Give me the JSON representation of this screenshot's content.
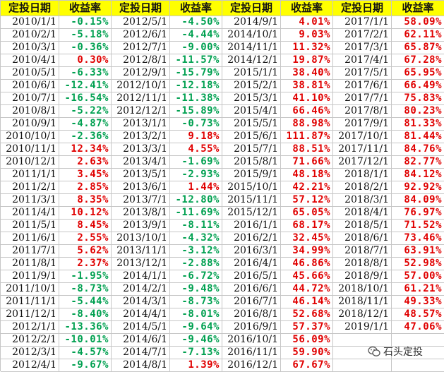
{
  "headers": [
    "定投日期",
    "收益率",
    "定投日期",
    "收益率",
    "定投日期",
    "收益率",
    "定投日期",
    "收益率"
  ],
  "colors": {
    "header_bg": "#ffff00",
    "positive": "#e00000",
    "negative": "#00a050",
    "gridline": "#c6c6c6"
  },
  "column_groups": [
    {
      "rows": [
        {
          "date": "2010/1/1",
          "return": "-0.15%"
        },
        {
          "date": "2010/2/1",
          "return": "-5.18%"
        },
        {
          "date": "2010/3/1",
          "return": "-0.36%"
        },
        {
          "date": "2010/4/1",
          "return": "0.30%"
        },
        {
          "date": "2010/5/1",
          "return": "-6.33%"
        },
        {
          "date": "2010/6/1",
          "return": "-12.41%"
        },
        {
          "date": "2010/7/1",
          "return": "-16.54%"
        },
        {
          "date": "2010/8/1",
          "return": "-5.22%"
        },
        {
          "date": "2010/9/1",
          "return": "-4.87%"
        },
        {
          "date": "2010/10/1",
          "return": "-2.36%"
        },
        {
          "date": "2010/11/1",
          "return": "12.34%"
        },
        {
          "date": "2010/12/1",
          "return": "2.63%"
        },
        {
          "date": "2011/1/1",
          "return": "3.45%"
        },
        {
          "date": "2011/2/1",
          "return": "2.85%"
        },
        {
          "date": "2011/3/1",
          "return": "8.35%"
        },
        {
          "date": "2011/4/1",
          "return": "10.12%"
        },
        {
          "date": "2011/5/1",
          "return": "8.45%"
        },
        {
          "date": "2011/6/1",
          "return": "2.55%"
        },
        {
          "date": "2011/7/1",
          "return": "5.62%"
        },
        {
          "date": "2011/8/1",
          "return": "2.37%"
        },
        {
          "date": "2011/9/1",
          "return": "-1.95%"
        },
        {
          "date": "2011/10/1",
          "return": "-8.73%"
        },
        {
          "date": "2011/11/1",
          "return": "-5.44%"
        },
        {
          "date": "2011/12/1",
          "return": "-8.40%"
        },
        {
          "date": "2012/1/1",
          "return": "-13.36%"
        },
        {
          "date": "2012/2/1",
          "return": "-10.01%"
        },
        {
          "date": "2012/3/1",
          "return": "-4.57%"
        },
        {
          "date": "2012/4/1",
          "return": "-9.67%"
        }
      ]
    },
    {
      "rows": [
        {
          "date": "2012/5/1",
          "return": "-4.50%"
        },
        {
          "date": "2012/6/1",
          "return": "-4.44%"
        },
        {
          "date": "2012/7/1",
          "return": "-9.00%"
        },
        {
          "date": "2012/8/1",
          "return": "-11.57%"
        },
        {
          "date": "2012/9/1",
          "return": "-15.79%"
        },
        {
          "date": "2012/10/1",
          "return": "-12.18%"
        },
        {
          "date": "2012/11/1",
          "return": "-11.38%"
        },
        {
          "date": "2012/12/1",
          "return": "-15.89%"
        },
        {
          "date": "2013/1/1",
          "return": "-0.73%"
        },
        {
          "date": "2013/2/1",
          "return": "9.18%"
        },
        {
          "date": "2013/3/1",
          "return": "4.55%"
        },
        {
          "date": "2013/4/1",
          "return": "-1.69%"
        },
        {
          "date": "2013/5/1",
          "return": "-2.93%"
        },
        {
          "date": "2013/6/1",
          "return": "1.44%"
        },
        {
          "date": "2013/7/1",
          "return": "-12.80%"
        },
        {
          "date": "2013/8/1",
          "return": "-11.69%"
        },
        {
          "date": "2013/9/1",
          "return": "-8.11%"
        },
        {
          "date": "2013/10/1",
          "return": "-4.32%"
        },
        {
          "date": "2013/11/1",
          "return": "-3.12%"
        },
        {
          "date": "2013/12/1",
          "return": "-2.88%"
        },
        {
          "date": "2014/1/1",
          "return": "-6.72%"
        },
        {
          "date": "2014/2/1",
          "return": "-9.48%"
        },
        {
          "date": "2014/3/1",
          "return": "-8.73%"
        },
        {
          "date": "2014/4/1",
          "return": "-8.01%"
        },
        {
          "date": "2014/5/1",
          "return": "-9.64%"
        },
        {
          "date": "2014/6/1",
          "return": "-9.46%"
        },
        {
          "date": "2014/7/1",
          "return": "-7.13%"
        },
        {
          "date": "2014/8/1",
          "return": "1.39%"
        }
      ]
    },
    {
      "rows": [
        {
          "date": "2014/9/1",
          "return": "4.01%"
        },
        {
          "date": "2014/10/1",
          "return": "9.03%"
        },
        {
          "date": "2014/11/1",
          "return": "11.32%"
        },
        {
          "date": "2014/12/1",
          "return": "19.87%"
        },
        {
          "date": "2015/1/1",
          "return": "38.40%"
        },
        {
          "date": "2015/2/1",
          "return": "38.81%"
        },
        {
          "date": "2015/3/1",
          "return": "41.10%"
        },
        {
          "date": "2015/4/1",
          "return": "66.46%"
        },
        {
          "date": "2015/5/1",
          "return": "88.98%"
        },
        {
          "date": "2015/6/1",
          "return": "111.87%"
        },
        {
          "date": "2015/7/1",
          "return": "88.51%"
        },
        {
          "date": "2015/8/1",
          "return": "71.66%"
        },
        {
          "date": "2015/9/1",
          "return": "48.18%"
        },
        {
          "date": "2015/10/1",
          "return": "42.21%"
        },
        {
          "date": "2015/11/1",
          "return": "57.12%"
        },
        {
          "date": "2015/12/1",
          "return": "65.05%"
        },
        {
          "date": "2016/1/1",
          "return": "68.17%"
        },
        {
          "date": "2016/2/1",
          "return": "32.45%"
        },
        {
          "date": "2016/3/1",
          "return": "34.99%"
        },
        {
          "date": "2016/4/1",
          "return": "46.86%"
        },
        {
          "date": "2016/5/1",
          "return": "45.66%"
        },
        {
          "date": "2016/6/1",
          "return": "44.72%"
        },
        {
          "date": "2016/7/1",
          "return": "46.14%"
        },
        {
          "date": "2016/8/1",
          "return": "52.68%"
        },
        {
          "date": "2016/9/1",
          "return": "57.37%"
        },
        {
          "date": "2016/10/1",
          "return": "56.09%"
        },
        {
          "date": "2016/11/1",
          "return": "59.90%"
        },
        {
          "date": "2016/12/1",
          "return": "67.67%"
        }
      ]
    },
    {
      "rows": [
        {
          "date": "2017/1/1",
          "return": "58.09%"
        },
        {
          "date": "2017/2/1",
          "return": "62.11%"
        },
        {
          "date": "2017/3/1",
          "return": "65.87%"
        },
        {
          "date": "2017/4/1",
          "return": "67.28%"
        },
        {
          "date": "2017/5/1",
          "return": "65.95%"
        },
        {
          "date": "2017/6/1",
          "return": "66.49%"
        },
        {
          "date": "2017/7/1",
          "return": "75.83%"
        },
        {
          "date": "2017/8/1",
          "return": "80.23%"
        },
        {
          "date": "2017/9/1",
          "return": "81.33%"
        },
        {
          "date": "2017/10/1",
          "return": "81.44%"
        },
        {
          "date": "2017/11/1",
          "return": "84.76%"
        },
        {
          "date": "2017/12/1",
          "return": "82.77%"
        },
        {
          "date": "2018/1/1",
          "return": "84.12%"
        },
        {
          "date": "2018/2/1",
          "return": "92.92%"
        },
        {
          "date": "2018/3/1",
          "return": "84.09%"
        },
        {
          "date": "2018/4/1",
          "return": "76.97%"
        },
        {
          "date": "2018/5/1",
          "return": "71.52%"
        },
        {
          "date": "2018/6/1",
          "return": "73.46%"
        },
        {
          "date": "2018/7/1",
          "return": "63.91%"
        },
        {
          "date": "2018/8/1",
          "return": "52.98%"
        },
        {
          "date": "2018/9/1",
          "return": "57.00%"
        },
        {
          "date": "2018/10/1",
          "return": "61.21%"
        },
        {
          "date": "2018/11/1",
          "return": "49.33%"
        },
        {
          "date": "2018/12/1",
          "return": "48.57%"
        },
        {
          "date": "2019/1/1",
          "return": "47.06%"
        }
      ]
    }
  ],
  "watermark": {
    "icon": "wechat-icon",
    "text": "石头定投"
  }
}
